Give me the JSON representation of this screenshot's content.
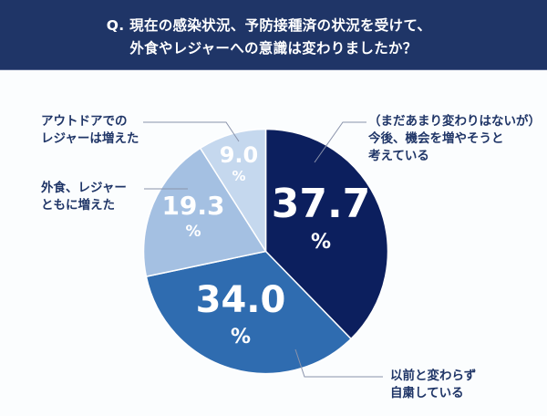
{
  "header": {
    "title_line1": "Q. 現在の感染状況、予防接種済の状況を受けて、",
    "title_line2": "外食やレジャーへの意識は変わりましたか？",
    "background": "#1f3567"
  },
  "chart_data": {
    "type": "pie",
    "title": "Q. 現在の感染状況、予防接種済の状況を受けて、外食やレジャーへの意識は変わりましたか？",
    "start_angle": "12 o'clock, clockwise",
    "unit": "%",
    "slices": [
      {
        "label": "（まだあまり変わりはないが）今後、機会を増やそうと考えている",
        "label_lines": [
          "（まだあまり変わりはないが）",
          "今後、機会を増やそうと",
          "考えている"
        ],
        "value": 37.7,
        "value_text": "37.7",
        "color": "#0c1f5e"
      },
      {
        "label": "以前と変わらず自粛している",
        "label_lines": [
          "以前と変わらず",
          "自粛している"
        ],
        "value": 34.0,
        "value_text": "34.0",
        "color": "#2f6cb0"
      },
      {
        "label": "外食、レジャーともに増えた",
        "label_lines": [
          "外食、レジャー",
          "ともに増えた"
        ],
        "value": 19.3,
        "value_text": "19.3",
        "color": "#a4c0e2"
      },
      {
        "label": "アウトドアでのレジャーは増えた",
        "label_lines": [
          "アウトドアでの",
          "レジャーは増えた"
        ],
        "value": 9.0,
        "value_text": "9.0",
        "color": "#c5d8ee"
      }
    ],
    "percent_sign": "%",
    "legend": "callout labels with leader lines"
  }
}
